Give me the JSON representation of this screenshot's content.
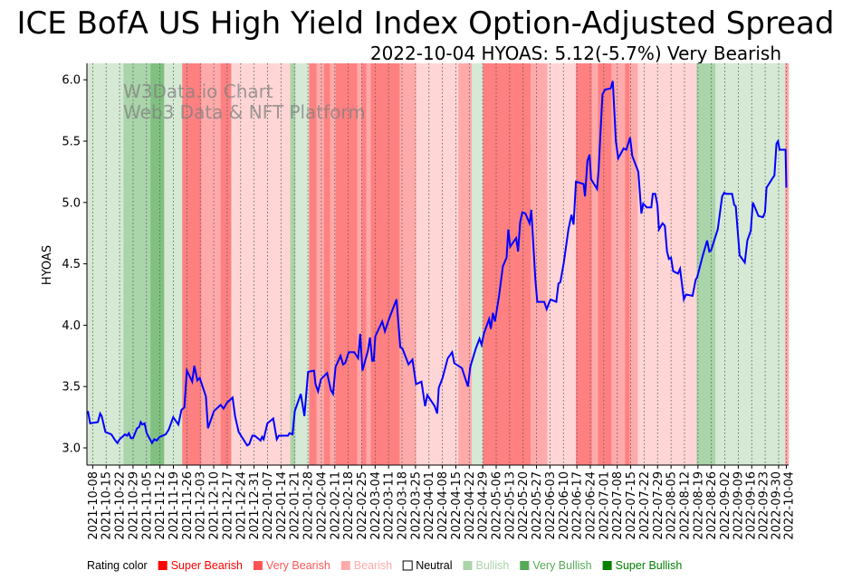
{
  "chart_data": {
    "type": "line",
    "title": "ICE BofA US High Yield Index Option-Adjusted Spread",
    "subtitle": "2022-10-04 HYOAS: 5.12(-5.7%) Very Bearish",
    "watermark": [
      "W3Data.io Chart",
      "Web3 Data & NFT Platform"
    ],
    "ylabel": "HYOAS",
    "xlabel": "",
    "ylim": [
      2.86,
      6.134
    ],
    "xlim_days": [
      -3,
      362.2
    ],
    "x_unit": "days since 2021-10-08",
    "yticks": [
      "3.0",
      "3.5",
      "4.0",
      "4.5",
      "5.0",
      "5.5",
      "6.0"
    ],
    "xtick_labels": [
      "2021-10-08",
      "2021-10-15",
      "2021-10-22",
      "2021-10-29",
      "2021-11-05",
      "2021-11-12",
      "2021-11-19",
      "2021-11-26",
      "2021-12-03",
      "2021-12-10",
      "2021-12-17",
      "2021-12-24",
      "2021-12-31",
      "2022-01-07",
      "2022-01-14",
      "2022-01-21",
      "2022-01-28",
      "2022-02-04",
      "2022-02-11",
      "2022-02-18",
      "2022-02-25",
      "2022-03-04",
      "2022-03-11",
      "2022-03-18",
      "2022-03-25",
      "2022-04-01",
      "2022-04-08",
      "2022-04-15",
      "2022-04-22",
      "2022-04-29",
      "2022-05-06",
      "2022-05-13",
      "2022-05-20",
      "2022-05-27",
      "2022-06-03",
      "2022-06-10",
      "2022-06-17",
      "2022-06-24",
      "2022-07-01",
      "2022-07-08",
      "2022-07-15",
      "2022-07-22",
      "2022-07-29",
      "2022-08-05",
      "2022-08-12",
      "2022-08-19",
      "2022-08-26",
      "2022-09-02",
      "2022-09-09",
      "2022-09-16",
      "2022-09-23",
      "2022-09-30",
      "2022-10-04"
    ],
    "xtick_days": [
      0,
      7,
      14,
      21,
      28,
      35,
      42,
      49,
      56,
      63,
      70,
      77,
      84,
      91,
      98,
      105,
      112,
      119,
      126,
      133,
      140,
      147,
      154,
      161,
      168,
      175,
      182,
      189,
      196,
      203,
      210,
      217,
      224,
      231,
      238,
      245,
      252,
      259,
      266,
      273,
      280,
      287,
      294,
      301,
      308,
      315,
      322,
      329,
      336,
      343,
      350,
      357,
      361
    ],
    "series": [
      {
        "name": "HYOAS",
        "color": "#0000ff",
        "points": [
          [
            -2.5,
            3.3
          ],
          [
            -1.3,
            3.2
          ],
          [
            2.7,
            3.21
          ],
          [
            3.9,
            3.28
          ],
          [
            4.7,
            3.26
          ],
          [
            6.6,
            3.13
          ],
          [
            9.7,
            3.11
          ],
          [
            11.8,
            3.06
          ],
          [
            12.9,
            3.04
          ],
          [
            14,
            3.07
          ],
          [
            16.8,
            3.11
          ],
          [
            17.9,
            3.1
          ],
          [
            18.8,
            3.12
          ],
          [
            19.9,
            3.08
          ],
          [
            21,
            3.08
          ],
          [
            23.1,
            3.16
          ],
          [
            24.2,
            3.17
          ],
          [
            25,
            3.21
          ],
          [
            25.9,
            3.19
          ],
          [
            27,
            3.2
          ],
          [
            28.1,
            3.12
          ],
          [
            30.9,
            3.04
          ],
          [
            32,
            3.07
          ],
          [
            33.3,
            3.06
          ],
          [
            34.9,
            3.09
          ],
          [
            38,
            3.11
          ],
          [
            39.6,
            3.15
          ],
          [
            41.9,
            3.25
          ],
          [
            44.6,
            3.19
          ],
          [
            46.2,
            3.31
          ],
          [
            47.7,
            3.33
          ],
          [
            49,
            3.63
          ],
          [
            51.8,
            3.54
          ],
          [
            52.9,
            3.67
          ],
          [
            54.5,
            3.55
          ],
          [
            55.7,
            3.57
          ],
          [
            58.9,
            3.42
          ],
          [
            60,
            3.16
          ],
          [
            63.1,
            3.3
          ],
          [
            66.6,
            3.35
          ],
          [
            68.1,
            3.32
          ],
          [
            70,
            3.37
          ],
          [
            72.8,
            3.41
          ],
          [
            74.1,
            3.26
          ],
          [
            76,
            3.13
          ],
          [
            80.4,
            3.02
          ],
          [
            81.5,
            3.03
          ],
          [
            83.1,
            3.1
          ],
          [
            84.3,
            3.1
          ],
          [
            87.4,
            3.06
          ],
          [
            88.2,
            3.09
          ],
          [
            89,
            3.07
          ],
          [
            90.9,
            3.2
          ],
          [
            94,
            3.24
          ],
          [
            95.8,
            3.07
          ],
          [
            96.9,
            3.1
          ],
          [
            101.6,
            3.1
          ],
          [
            102.4,
            3.12
          ],
          [
            104,
            3.11
          ],
          [
            105.2,
            3.3
          ],
          [
            108.3,
            3.44
          ],
          [
            110.2,
            3.26
          ],
          [
            112.1,
            3.62
          ],
          [
            115.2,
            3.63
          ],
          [
            116,
            3.52
          ],
          [
            117.3,
            3.46
          ],
          [
            118.8,
            3.56
          ],
          [
            122,
            3.61
          ],
          [
            124,
            3.47
          ],
          [
            125.1,
            3.44
          ],
          [
            126.4,
            3.66
          ],
          [
            129,
            3.75
          ],
          [
            130.3,
            3.68
          ],
          [
            131.4,
            3.69
          ],
          [
            133.3,
            3.78
          ],
          [
            136.1,
            3.78
          ],
          [
            138.2,
            3.73
          ],
          [
            139.2,
            3.93
          ],
          [
            140.4,
            3.63
          ],
          [
            143.2,
            3.79
          ],
          [
            144.3,
            3.9
          ],
          [
            145.5,
            3.71
          ],
          [
            146.3,
            3.71
          ],
          [
            147.1,
            3.91
          ],
          [
            150.7,
            4.03
          ],
          [
            152.1,
            3.95
          ],
          [
            154.2,
            4.05
          ],
          [
            158.1,
            4.21
          ],
          [
            160.1,
            3.82
          ],
          [
            161.2,
            3.81
          ],
          [
            164.4,
            3.68
          ],
          [
            166.4,
            3.72
          ],
          [
            168.3,
            3.52
          ],
          [
            171.1,
            3.54
          ],
          [
            173,
            3.34
          ],
          [
            174.2,
            3.43
          ],
          [
            178,
            3.34
          ],
          [
            179.3,
            3.28
          ],
          [
            180.1,
            3.49
          ],
          [
            182.1,
            3.57
          ],
          [
            184.8,
            3.73
          ],
          [
            187.1,
            3.78
          ],
          [
            188.2,
            3.69
          ],
          [
            192.2,
            3.65
          ],
          [
            193.4,
            3.59
          ],
          [
            195.3,
            3.5
          ],
          [
            196.5,
            3.66
          ],
          [
            199.4,
            3.81
          ],
          [
            201.3,
            3.89
          ],
          [
            202.4,
            3.84
          ],
          [
            203.6,
            3.93
          ],
          [
            206.3,
            4.05
          ],
          [
            207.2,
            3.97
          ],
          [
            208.3,
            4.1
          ],
          [
            209.4,
            4.03
          ],
          [
            211.5,
            4.24
          ],
          [
            213.5,
            4.48
          ],
          [
            215.4,
            4.55
          ],
          [
            216.3,
            4.78
          ],
          [
            217.3,
            4.64
          ],
          [
            220.4,
            4.71
          ],
          [
            221.4,
            4.6
          ],
          [
            222.5,
            4.84
          ],
          [
            223.6,
            4.92
          ],
          [
            225.2,
            4.91
          ],
          [
            227.4,
            4.83
          ],
          [
            228.3,
            4.94
          ],
          [
            230.4,
            4.37
          ],
          [
            231.4,
            4.19
          ],
          [
            235,
            4.19
          ],
          [
            236.3,
            4.13
          ],
          [
            238.2,
            4.21
          ],
          [
            241.3,
            4.19
          ],
          [
            242.4,
            4.34
          ],
          [
            243.4,
            4.35
          ],
          [
            245.2,
            4.51
          ],
          [
            247.6,
            4.78
          ],
          [
            249.2,
            4.9
          ],
          [
            250.3,
            4.82
          ],
          [
            251.5,
            5.17
          ],
          [
            255.5,
            5.15
          ],
          [
            256.2,
            5.05
          ],
          [
            257.5,
            5.34
          ],
          [
            258.6,
            5.39
          ],
          [
            259.4,
            5.19
          ],
          [
            262.5,
            5.11
          ],
          [
            263.3,
            5.26
          ],
          [
            265.3,
            5.88
          ],
          [
            266.7,
            5.92
          ],
          [
            269.6,
            5.93
          ],
          [
            270.7,
            5.99
          ],
          [
            272.3,
            5.5
          ],
          [
            273.5,
            5.36
          ],
          [
            276.3,
            5.44
          ],
          [
            277.7,
            5.43
          ],
          [
            279.7,
            5.53
          ],
          [
            280.8,
            5.38
          ],
          [
            284,
            5.25
          ],
          [
            285.6,
            4.91
          ],
          [
            286.5,
            4.99
          ],
          [
            288.4,
            4.96
          ],
          [
            290.7,
            4.96
          ],
          [
            291.5,
            5.07
          ],
          [
            292.8,
            5.07
          ],
          [
            293.9,
            4.98
          ],
          [
            294.7,
            4.78
          ],
          [
            296.6,
            4.83
          ],
          [
            297.8,
            4.81
          ],
          [
            298.9,
            4.6
          ],
          [
            299.9,
            4.54
          ],
          [
            301,
            4.55
          ],
          [
            302.1,
            4.44
          ],
          [
            304.6,
            4.42
          ],
          [
            305.7,
            4.46
          ],
          [
            307.7,
            4.21
          ],
          [
            308.8,
            4.25
          ],
          [
            312.2,
            4.24
          ],
          [
            313.8,
            4.37
          ],
          [
            314.6,
            4.39
          ],
          [
            317.4,
            4.56
          ],
          [
            319.8,
            4.69
          ],
          [
            320.9,
            4.6
          ],
          [
            321.8,
            4.61
          ],
          [
            325.3,
            4.78
          ],
          [
            327.6,
            5.05
          ],
          [
            328.7,
            5.08
          ],
          [
            329.7,
            5.07
          ],
          [
            332.8,
            5.07
          ],
          [
            333.9,
            4.98
          ],
          [
            334.7,
            4.97
          ],
          [
            336.7,
            4.57
          ],
          [
            339.4,
            4.51
          ],
          [
            340.7,
            4.69
          ],
          [
            342.5,
            4.77
          ],
          [
            343.6,
            5.0
          ],
          [
            346.5,
            4.89
          ],
          [
            348.8,
            4.88
          ],
          [
            349.9,
            4.92
          ],
          [
            350.7,
            5.12
          ],
          [
            353.9,
            5.2
          ],
          [
            354.8,
            5.22
          ],
          [
            355.9,
            5.48
          ],
          [
            356.7,
            5.5
          ],
          [
            357.5,
            5.43
          ],
          [
            360.6,
            5.43
          ],
          [
            361,
            5.12
          ]
        ]
      }
    ],
    "rating_bands": [
      [
        -3,
        16,
        "bullish"
      ],
      [
        16,
        30.1,
        "very_bullish"
      ],
      [
        30.1,
        37.2,
        "super_bullish"
      ],
      [
        37.2,
        46.6,
        "bullish"
      ],
      [
        46.6,
        56.5,
        "super_bearish"
      ],
      [
        56.5,
        66.6,
        "very_bearish"
      ],
      [
        66.6,
        72.1,
        "super_bearish"
      ],
      [
        72.1,
        102.8,
        "bearish"
      ],
      [
        102.8,
        105.5,
        "very_bullish"
      ],
      [
        105.5,
        112.6,
        "bullish"
      ],
      [
        112.6,
        116.5,
        "super_bearish"
      ],
      [
        116.5,
        120.4,
        "very_bearish"
      ],
      [
        120.4,
        123.5,
        "super_bearish"
      ],
      [
        123.5,
        126.4,
        "very_bearish"
      ],
      [
        126.4,
        137.7,
        "super_bearish"
      ],
      [
        137.7,
        140,
        "very_bearish"
      ],
      [
        140,
        142.4,
        "super_bearish"
      ],
      [
        142.4,
        144.7,
        "very_bearish"
      ],
      [
        144.7,
        159.7,
        "super_bearish"
      ],
      [
        159.7,
        168.3,
        "very_bearish"
      ],
      [
        168.3,
        190.3,
        "bearish"
      ],
      [
        190.3,
        197.3,
        "very_bearish"
      ],
      [
        197.3,
        203.1,
        "bullish"
      ],
      [
        203.1,
        227.9,
        "super_bearish"
      ],
      [
        227.9,
        236.6,
        "very_bearish"
      ],
      [
        236.6,
        251.5,
        "bearish"
      ],
      [
        251.5,
        259.8,
        "super_bearish"
      ],
      [
        259.8,
        263,
        "very_bearish"
      ],
      [
        263,
        270,
        "super_bearish"
      ],
      [
        270,
        277.1,
        "very_bearish"
      ],
      [
        277.1,
        279.4,
        "super_bearish"
      ],
      [
        279.4,
        283.7,
        "very_bearish"
      ],
      [
        283.7,
        314.3,
        "bearish"
      ],
      [
        314.3,
        324.1,
        "very_bullish"
      ],
      [
        324.1,
        360.3,
        "bullish"
      ],
      [
        360.3,
        362.2,
        "very_bearish"
      ]
    ],
    "band_colors": {
      "super_bearish": "#ff8080",
      "very_bearish": "#ffaaaa",
      "bearish": "#ffd5d5",
      "neutral": "#ffffff",
      "bullish": "#d5e9d5",
      "very_bullish": "#aad4aa",
      "super_bullish": "#80c080"
    },
    "legend": {
      "title": "Rating color",
      "placement": "bottom",
      "items": [
        {
          "key": "super_bearish",
          "label": "Super Bearish",
          "color": "#ff0000"
        },
        {
          "key": "very_bearish",
          "label": "Very Bearish",
          "color": "#ff5555"
        },
        {
          "key": "bearish",
          "label": "Bearish",
          "color": "#ffaaaa"
        },
        {
          "key": "neutral",
          "label": "Neutral",
          "color": "#000000"
        },
        {
          "key": "bullish",
          "label": "Bullish",
          "color": "#aad4aa"
        },
        {
          "key": "very_bullish",
          "label": "Very Bullish",
          "color": "#55aa55"
        },
        {
          "key": "super_bullish",
          "label": "Super Bullish",
          "color": "#008000"
        }
      ]
    }
  }
}
